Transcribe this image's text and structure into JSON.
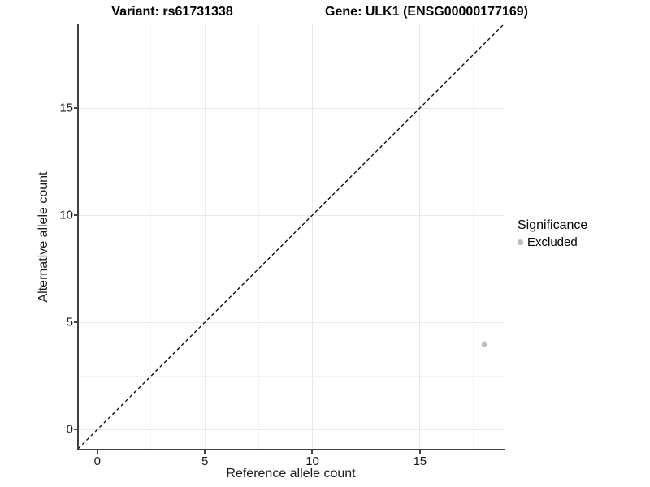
{
  "titles": {
    "variant": "Variant: rs61731338",
    "gene": "Gene: ULK1 (ENSG00000177169)"
  },
  "chart_data": {
    "type": "scatter",
    "title": "",
    "xlabel": "Reference allele count",
    "ylabel": "Alternative allele count",
    "xlim": [
      -0.9,
      18.9
    ],
    "ylim": [
      -0.9,
      18.9
    ],
    "x_ticks": [
      0,
      5,
      10,
      15
    ],
    "y_ticks": [
      0,
      5,
      10,
      15
    ],
    "x_minor_ticks": [
      2.5,
      7.5,
      12.5,
      17.5
    ],
    "y_minor_ticks": [
      2.5,
      7.5,
      12.5,
      17.5
    ],
    "grid": true,
    "legend_position": "right",
    "series": [
      {
        "name": "Excluded",
        "points": [
          {
            "x": 18,
            "y": 4
          }
        ],
        "color": "#bebebe"
      }
    ],
    "reference_line": {
      "label": "identity",
      "from": [
        -0.9,
        -0.9
      ],
      "to": [
        18.9,
        18.9
      ],
      "style": "dashed",
      "color": "#000000"
    },
    "legend": {
      "title": "Significance",
      "entries": [
        {
          "label": "Excluded",
          "color": "#bebebe"
        }
      ]
    }
  },
  "colors": {
    "background": "#ffffff",
    "axis_line": "#404040",
    "grid_major": "#e8e8e8",
    "grid_minor": "#f4f4f4",
    "text": "#1a1a1a",
    "point": "#bebebe"
  }
}
